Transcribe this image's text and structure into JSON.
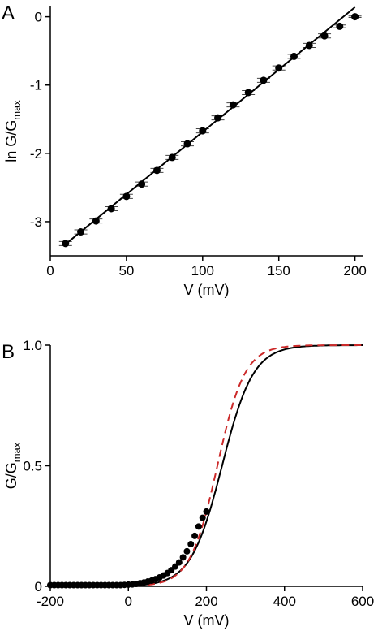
{
  "chart_data": [
    {
      "panel": "A",
      "type": "scatter",
      "xlabel": "V (mV)",
      "ylabel_main": "ln G/G",
      "ylabel_sub": "max",
      "xlim": [
        0,
        205
      ],
      "ylim": [
        -3.5,
        0.15
      ],
      "xticks": [
        0,
        50,
        100,
        150,
        200
      ],
      "yticks": [
        -3,
        -2,
        -1,
        0
      ],
      "grid": false,
      "series": [
        {
          "kind": "points-with-error",
          "color": "#000000",
          "x": [
            10,
            20,
            30,
            40,
            50,
            60,
            70,
            80,
            90,
            100,
            110,
            120,
            130,
            140,
            150,
            160,
            170,
            180,
            190,
            200
          ],
          "y": [
            -3.32,
            -3.15,
            -2.99,
            -2.81,
            -2.63,
            -2.45,
            -2.25,
            -2.06,
            -1.86,
            -1.67,
            -1.48,
            -1.29,
            -1.11,
            -0.93,
            -0.75,
            -0.58,
            -0.42,
            -0.28,
            -0.14,
            0.0
          ],
          "err": [
            0.03,
            0.03,
            0.03,
            0.03,
            0.03,
            0.03,
            0.03,
            0.03,
            0.03,
            0.03,
            0.03,
            0.03,
            0.03,
            0.03,
            0.03,
            0.03,
            0.03,
            0.03,
            0.02,
            0.01
          ]
        },
        {
          "kind": "line",
          "color": "#000000",
          "dash": "solid",
          "x": [
            10,
            200
          ],
          "y": [
            -3.33,
            0.14
          ]
        }
      ]
    },
    {
      "panel": "B",
      "type": "line",
      "xlabel": "V (mV)",
      "ylabel_main": "G/G",
      "ylabel_sub": "max",
      "xlim": [
        -200,
        600
      ],
      "ylim": [
        0,
        1.0
      ],
      "xticks": [
        -200,
        0,
        200,
        400,
        600
      ],
      "yticks": [
        0,
        0.5,
        1.0
      ],
      "ytick_labels": [
        "0",
        "0.5",
        "1.0"
      ],
      "grid": false,
      "series": [
        {
          "kind": "boltzmann",
          "color": "#000000",
          "dash": "solid",
          "v_half": 240,
          "slope": 40
        },
        {
          "kind": "boltzmann",
          "color": "#cc2a2a",
          "dash": "dashed",
          "v_half": 228,
          "slope": 35
        },
        {
          "kind": "points",
          "color": "#000000",
          "x": [
            -200,
            -190,
            -180,
            -170,
            -160,
            -150,
            -140,
            -130,
            -120,
            -110,
            -100,
            -90,
            -80,
            -70,
            -60,
            -50,
            -40,
            -30,
            -20,
            -10,
            0,
            10,
            20,
            30,
            40,
            50,
            60,
            70,
            80,
            90,
            100,
            110,
            120,
            130,
            140,
            150,
            160,
            170,
            180,
            190,
            200
          ],
          "y": [
            0.005,
            0.005,
            0.005,
            0.005,
            0.005,
            0.005,
            0.005,
            0.005,
            0.005,
            0.005,
            0.005,
            0.005,
            0.005,
            0.005,
            0.005,
            0.005,
            0.005,
            0.005,
            0.005,
            0.006,
            0.007,
            0.008,
            0.01,
            0.013,
            0.016,
            0.02,
            0.024,
            0.03,
            0.037,
            0.045,
            0.055,
            0.067,
            0.082,
            0.099,
            0.12,
            0.145,
            0.175,
            0.209,
            0.248,
            0.284,
            0.31
          ]
        }
      ]
    }
  ],
  "panel_a_letter": "A",
  "panel_b_letter": "B"
}
